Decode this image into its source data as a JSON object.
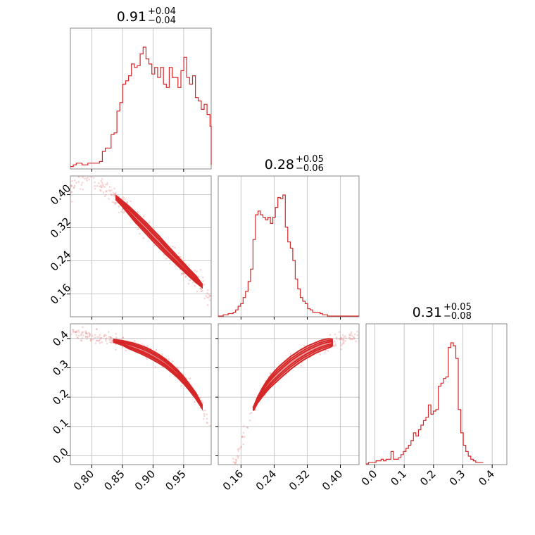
{
  "chart_data": {
    "type": "corner",
    "color": "#d62728",
    "parameters": [
      {
        "range": [
          0.765,
          0.995
        ],
        "ticks": [
          "0.80",
          "0.85",
          "0.90",
          "0.95"
        ],
        "title_median": "0.91",
        "title_plus": "+0.04",
        "title_minus": "−0.04"
      },
      {
        "range": [
          0.105,
          0.445
        ],
        "ticks": [
          "0.16",
          "0.24",
          "0.32",
          "0.40"
        ],
        "title_median": "0.28",
        "title_plus": "+0.05",
        "title_minus": "−0.06"
      },
      {
        "range": [
          -0.03,
          0.45
        ],
        "ticks": [
          "0.0",
          "0.1",
          "0.2",
          "0.3",
          "0.4"
        ],
        "title_median": "0.31",
        "title_plus": "+0.05",
        "title_minus": "−0.08"
      }
    ],
    "y_ticks_row1": [
      "0.16",
      "0.24",
      "0.32",
      "0.40"
    ],
    "y_ticks_row2": [
      "0.0",
      "0.1",
      "0.2",
      "0.3",
      "0.4"
    ],
    "histograms": [
      {
        "param": 0,
        "x0": 0.765,
        "dx": 0.00475,
        "counts": [
          1,
          2,
          3,
          3,
          2,
          2,
          3,
          3,
          3,
          3,
          4,
          10,
          12,
          12,
          20,
          21,
          34,
          39,
          50,
          52,
          55,
          62,
          60,
          61,
          68,
          72,
          65,
          62,
          56,
          60,
          54,
          60,
          50,
          48,
          60,
          54,
          54,
          48,
          58,
          66,
          54,
          50,
          55,
          42,
          40,
          35,
          38,
          32,
          25,
          16,
          10,
          5,
          5,
          2
        ]
      },
      {
        "param": 1,
        "x0": 0.105,
        "dx": 0.006,
        "counts": [
          0,
          0,
          1,
          1,
          2,
          2,
          3,
          5,
          8,
          10,
          15,
          20,
          28,
          38,
          62,
          82,
          85,
          82,
          80,
          78,
          80,
          75,
          80,
          88,
          96,
          95,
          98,
          72,
          60,
          55,
          45,
          30,
          22,
          15,
          12,
          10,
          6,
          5,
          3,
          3,
          3,
          2,
          1,
          1,
          0,
          0,
          0,
          0,
          0,
          0,
          0,
          0,
          0,
          0,
          0,
          0,
          0
        ]
      },
      {
        "param": 2,
        "x0": -0.03,
        "dx": 0.0085,
        "counts": [
          0,
          1,
          1,
          1,
          2,
          2,
          3,
          2,
          3,
          3,
          8,
          3,
          3,
          4,
          6,
          8,
          10,
          12,
          15,
          20,
          18,
          22,
          25,
          28,
          30,
          38,
          32,
          34,
          35,
          50,
          52,
          55,
          56,
          75,
          78,
          76,
          68,
          35,
          20,
          12,
          8,
          5,
          3,
          2,
          1,
          1,
          1
        ]
      }
    ],
    "curves": [
      {
        "row": 1,
        "col": 0,
        "y_range": [
          0.105,
          0.445
        ],
        "x": [
          0.84,
          0.85,
          0.86,
          0.87,
          0.88,
          0.89,
          0.9,
          0.91,
          0.92,
          0.93,
          0.94,
          0.95,
          0.96,
          0.97,
          0.98
        ],
        "y": [
          0.392,
          0.378,
          0.363,
          0.347,
          0.332,
          0.317,
          0.301,
          0.286,
          0.27,
          0.255,
          0.24,
          0.225,
          0.21,
          0.196,
          0.18
        ],
        "w": [
          0.005,
          0.007,
          0.01,
          0.012,
          0.013,
          0.014,
          0.014,
          0.014,
          0.013,
          0.012,
          0.011,
          0.01,
          0.009,
          0.008,
          0.004
        ]
      },
      {
        "row": 2,
        "col": 0,
        "y_range": [
          -0.03,
          0.45
        ],
        "x": [
          0.836,
          0.85,
          0.86,
          0.87,
          0.88,
          0.89,
          0.9,
          0.91,
          0.92,
          0.93,
          0.94,
          0.95,
          0.96,
          0.97,
          0.98
        ],
        "y": [
          0.392,
          0.385,
          0.377,
          0.37,
          0.362,
          0.353,
          0.342,
          0.33,
          0.316,
          0.299,
          0.28,
          0.258,
          0.232,
          0.204,
          0.168
        ],
        "w": [
          0.005,
          0.008,
          0.011,
          0.013,
          0.014,
          0.015,
          0.015,
          0.015,
          0.014,
          0.014,
          0.013,
          0.012,
          0.011,
          0.01,
          0.006
        ]
      },
      {
        "row": 2,
        "col": 1,
        "y_range": [
          -0.03,
          0.45
        ],
        "x": [
          0.19,
          0.2,
          0.21,
          0.22,
          0.23,
          0.24,
          0.25,
          0.26,
          0.27,
          0.28,
          0.29,
          0.3,
          0.31,
          0.32,
          0.33,
          0.34,
          0.35,
          0.36,
          0.37,
          0.38
        ],
        "y": [
          0.16,
          0.19,
          0.213,
          0.233,
          0.251,
          0.266,
          0.28,
          0.293,
          0.305,
          0.317,
          0.327,
          0.337,
          0.346,
          0.354,
          0.361,
          0.368,
          0.374,
          0.379,
          0.383,
          0.386
        ],
        "w": [
          0.006,
          0.01,
          0.014,
          0.017,
          0.019,
          0.021,
          0.022,
          0.022,
          0.022,
          0.022,
          0.021,
          0.021,
          0.02,
          0.02,
          0.019,
          0.018,
          0.018,
          0.017,
          0.016,
          0.012
        ]
      }
    ]
  }
}
